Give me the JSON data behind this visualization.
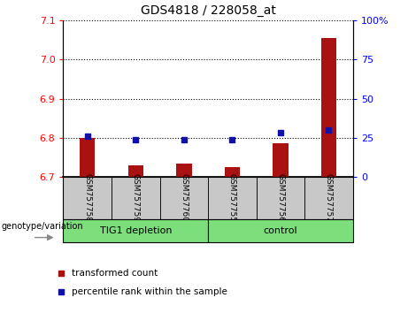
{
  "title": "GDS4818 / 228058_at",
  "samples": [
    "GSM757758",
    "GSM757759",
    "GSM757760",
    "GSM757755",
    "GSM757756",
    "GSM757757"
  ],
  "groups": [
    "TIG1 depletion",
    "TIG1 depletion",
    "TIG1 depletion",
    "control",
    "control",
    "control"
  ],
  "group_labels": [
    "TIG1 depletion",
    "control"
  ],
  "red_values": [
    6.8,
    6.73,
    6.733,
    6.725,
    6.785,
    7.055
  ],
  "blue_values_pct": [
    26,
    24,
    24,
    24,
    28,
    30
  ],
  "ylim": [
    6.7,
    7.1
  ],
  "y2lim": [
    0,
    100
  ],
  "yticks": [
    6.7,
    6.8,
    6.9,
    7.0,
    7.1
  ],
  "y2ticks": [
    0,
    25,
    50,
    75,
    100
  ],
  "bar_color": "#AA1111",
  "dot_color": "#1111AA",
  "bg_color": "#FFFFFF",
  "sample_bg_color": "#C8C8C8",
  "group_box_color": "#7CDF7C",
  "legend_red_label": "transformed count",
  "legend_blue_label": "percentile rank within the sample",
  "genotype_label": "genotype/variation"
}
